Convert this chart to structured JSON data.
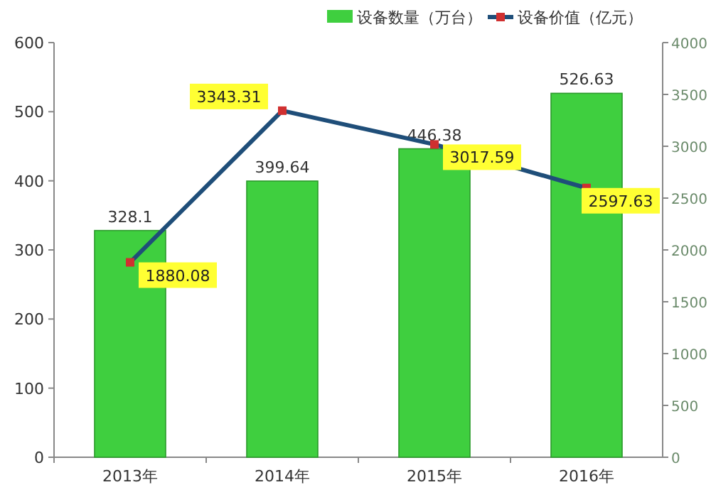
{
  "chart_data": {
    "type": "bar",
    "categories": [
      "2013年",
      "2014年",
      "2015年",
      "2016年"
    ],
    "series": [
      {
        "name": "设备数量（万台）",
        "color": "#3fcf3f",
        "values": [
          328.1,
          399.64,
          446.38,
          526.63
        ]
      },
      {
        "name": "设备价值（亿元）",
        "type": "line",
        "axis": "y2",
        "color": "#1f4e79",
        "values": [
          1880.08,
          3343.31,
          3017.59,
          2597.63
        ]
      }
    ],
    "ylim": [
      0,
      600
    ],
    "yticks": [
      0,
      100,
      200,
      300,
      400,
      500,
      600
    ],
    "y2lim": [
      0,
      4000
    ],
    "y2ticks": [
      0,
      500,
      1000,
      1500,
      2000,
      2500,
      3000,
      3500,
      4000
    ],
    "marker": "square",
    "data_labels": true,
    "legend": "top"
  }
}
